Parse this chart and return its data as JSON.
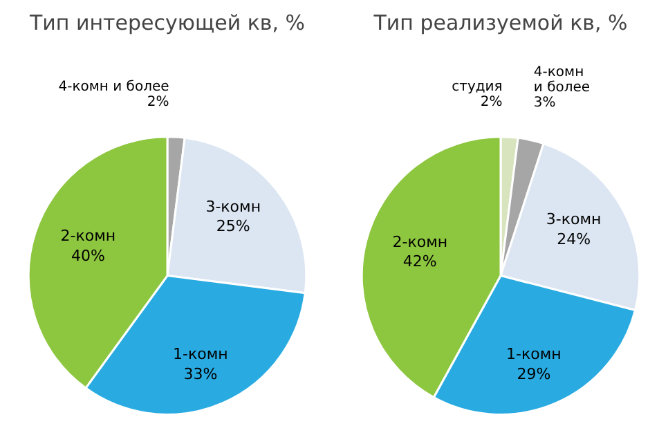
{
  "chart_data": [
    {
      "type": "pie",
      "title": "Тип интересующей кв, %",
      "categories": [
        "4-комн и более",
        "3-комн",
        "1-комн",
        "2-комн"
      ],
      "values": [
        2,
        25,
        33,
        40
      ],
      "colors": [
        "#a6a6a6",
        "#dce6f2",
        "#29abe2",
        "#8dc63f"
      ],
      "value_labels": [
        "2%",
        "25%",
        "33%",
        "40%"
      ]
    },
    {
      "type": "pie",
      "title": "Тип реализуемой кв, %",
      "categories": [
        "студия",
        "4-комн и более",
        "3-комн",
        "1-комн",
        "2-комн"
      ],
      "values": [
        2,
        3,
        24,
        29,
        42
      ],
      "colors": [
        "#d7e4bd",
        "#a6a6a6",
        "#dce6f2",
        "#29abe2",
        "#8dc63f"
      ],
      "value_labels": [
        "2%",
        "3%",
        "24%",
        "29%",
        "42%"
      ]
    }
  ]
}
